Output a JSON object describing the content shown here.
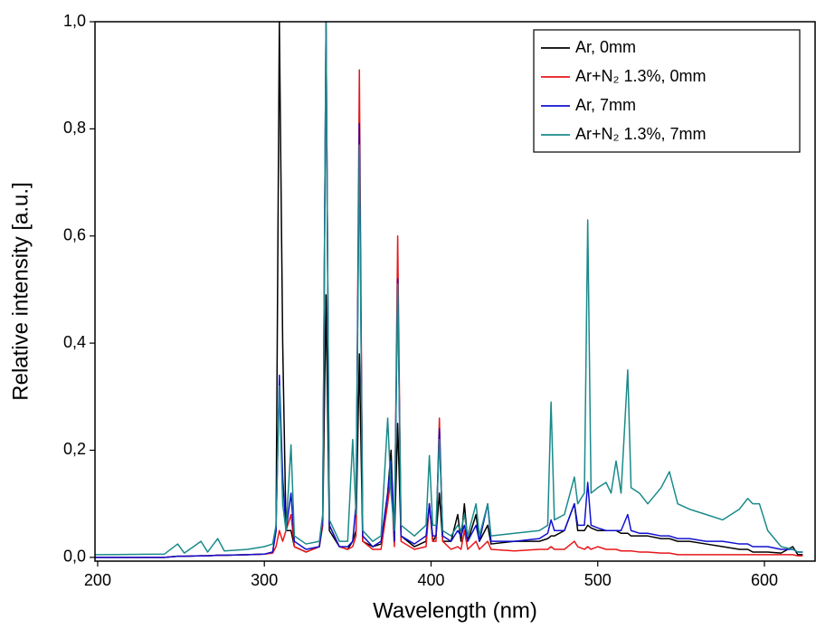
{
  "chart_data": {
    "type": "line",
    "x_label": "Wavelength (nm)",
    "y_label": "Relative intensity [a.u.]",
    "x": [
      198,
      240,
      248,
      252,
      262,
      266,
      272,
      276,
      290,
      300,
      305,
      307,
      309,
      311,
      313,
      316,
      318,
      325,
      333,
      335,
      337,
      339,
      345,
      350,
      353,
      355,
      357,
      359,
      365,
      370,
      374,
      376,
      378,
      380,
      382,
      390,
      397,
      399,
      401,
      403,
      405,
      407,
      412,
      416,
      418,
      420,
      422,
      427,
      429,
      434,
      436,
      450,
      465,
      470,
      472,
      474,
      480,
      486,
      488,
      492,
      494,
      496,
      500,
      505,
      508,
      511,
      514,
      518,
      520,
      525,
      530,
      538,
      543,
      548,
      555,
      565,
      575,
      585,
      590,
      593,
      597,
      602,
      610,
      617,
      620,
      623
    ],
    "series": [
      {
        "name": "Ar, 0mm",
        "color": "#000000",
        "values": [
          0,
          0,
          0.002,
          0.002,
          0.003,
          0.003,
          0.004,
          0.004,
          0.005,
          0.006,
          0.01,
          0.05,
          1.0,
          0.4,
          0.05,
          0.05,
          0.02,
          0.01,
          0.02,
          0.06,
          0.49,
          0.05,
          0.02,
          0.015,
          0.03,
          0.05,
          0.38,
          0.03,
          0.02,
          0.025,
          0.12,
          0.2,
          0.03,
          0.25,
          0.04,
          0.02,
          0.03,
          0.1,
          0.03,
          0.04,
          0.12,
          0.03,
          0.03,
          0.08,
          0.03,
          0.1,
          0.03,
          0.08,
          0.03,
          0.06,
          0.025,
          0.03,
          0.03,
          0.035,
          0.04,
          0.04,
          0.05,
          0.1,
          0.05,
          0.05,
          0.06,
          0.055,
          0.05,
          0.05,
          0.05,
          0.05,
          0.045,
          0.045,
          0.04,
          0.04,
          0.04,
          0.035,
          0.035,
          0.03,
          0.03,
          0.025,
          0.02,
          0.015,
          0.015,
          0.01,
          0.01,
          0.01,
          0.008,
          0.02,
          0.005,
          0.005
        ]
      },
      {
        "name": "Ar+N₂ 1.3%, 0mm",
        "color": "#e8161b",
        "values": [
          0,
          0,
          0.002,
          0.002,
          0.003,
          0.003,
          0.004,
          0.004,
          0.005,
          0.006,
          0.008,
          0.02,
          0.05,
          0.03,
          0.05,
          0.08,
          0.02,
          0.01,
          0.02,
          0.06,
          1.0,
          0.06,
          0.02,
          0.015,
          0.02,
          0.04,
          0.91,
          0.03,
          0.015,
          0.015,
          0.1,
          0.15,
          0.02,
          0.6,
          0.03,
          0.015,
          0.02,
          0.1,
          0.03,
          0.03,
          0.26,
          0.03,
          0.015,
          0.02,
          0.015,
          0.05,
          0.015,
          0.03,
          0.015,
          0.03,
          0.015,
          0.012,
          0.015,
          0.015,
          0.02,
          0.015,
          0.015,
          0.03,
          0.02,
          0.015,
          0.02,
          0.015,
          0.02,
          0.015,
          0.015,
          0.015,
          0.012,
          0.012,
          0.012,
          0.01,
          0.01,
          0.008,
          0.008,
          0.005,
          0.005,
          0.005,
          0.005,
          0.005,
          0.005,
          0.005,
          0.005,
          0.005,
          0.005,
          0.005,
          0.003,
          0.003
        ]
      },
      {
        "name": "Ar, 7mm",
        "color": "#1010d0",
        "values": [
          0,
          0,
          0.002,
          0.002,
          0.003,
          0.003,
          0.004,
          0.004,
          0.005,
          0.006,
          0.01,
          0.05,
          0.34,
          0.15,
          0.05,
          0.12,
          0.03,
          0.015,
          0.02,
          0.07,
          1.0,
          0.06,
          0.02,
          0.02,
          0.03,
          0.1,
          0.81,
          0.04,
          0.02,
          0.03,
          0.12,
          0.18,
          0.03,
          0.52,
          0.04,
          0.025,
          0.04,
          0.1,
          0.04,
          0.04,
          0.24,
          0.04,
          0.03,
          0.05,
          0.04,
          0.06,
          0.03,
          0.06,
          0.03,
          0.1,
          0.03,
          0.03,
          0.035,
          0.045,
          0.07,
          0.05,
          0.05,
          0.1,
          0.06,
          0.06,
          0.14,
          0.06,
          0.055,
          0.05,
          0.05,
          0.05,
          0.05,
          0.08,
          0.05,
          0.045,
          0.045,
          0.04,
          0.04,
          0.035,
          0.035,
          0.03,
          0.03,
          0.025,
          0.025,
          0.02,
          0.02,
          0.02,
          0.015,
          0.015,
          0.01,
          0.01
        ]
      },
      {
        "name": "Ar+N₂ 1.3%, 7mm",
        "color": "#1a8a8a",
        "values": [
          0.005,
          0.006,
          0.025,
          0.008,
          0.03,
          0.01,
          0.035,
          0.012,
          0.015,
          0.02,
          0.025,
          0.06,
          0.32,
          0.1,
          0.05,
          0.21,
          0.04,
          0.025,
          0.03,
          0.08,
          1.0,
          0.07,
          0.03,
          0.03,
          0.22,
          0.08,
          0.77,
          0.05,
          0.03,
          0.04,
          0.26,
          0.12,
          0.05,
          0.51,
          0.06,
          0.04,
          0.06,
          0.19,
          0.06,
          0.06,
          0.22,
          0.05,
          0.04,
          0.06,
          0.05,
          0.08,
          0.04,
          0.1,
          0.04,
          0.1,
          0.04,
          0.045,
          0.05,
          0.06,
          0.29,
          0.07,
          0.08,
          0.15,
          0.1,
          0.12,
          0.63,
          0.12,
          0.13,
          0.14,
          0.12,
          0.18,
          0.12,
          0.35,
          0.13,
          0.12,
          0.1,
          0.13,
          0.16,
          0.1,
          0.09,
          0.08,
          0.07,
          0.09,
          0.11,
          0.1,
          0.1,
          0.05,
          0.02,
          0.015,
          0.01,
          0.01
        ]
      }
    ],
    "xlim": [
      198.4,
      630.4
    ],
    "xticks": [
      200,
      300,
      400,
      500,
      600
    ],
    "ylim": [
      -0.007,
      1.0
    ],
    "yticks": [
      {
        "value": 0,
        "label": "0,0"
      },
      {
        "value": 0.2,
        "label": "0,2"
      },
      {
        "value": 0.4,
        "label": "0,4"
      },
      {
        "value": 0.6,
        "label": "0,6"
      },
      {
        "value": 0.8,
        "label": "0,8"
      },
      {
        "value": 1.0,
        "label": "1,0"
      }
    ],
    "legend": "upper right"
  }
}
